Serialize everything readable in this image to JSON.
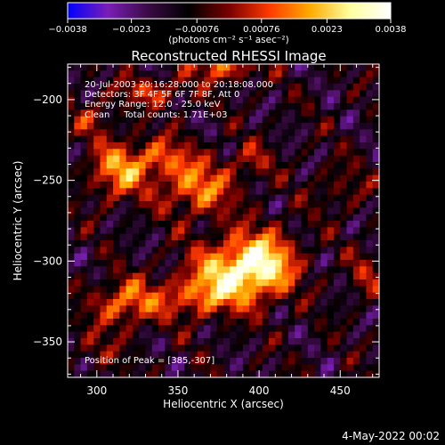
{
  "chart_data": {
    "type": "heatmap",
    "title": "Reconstructed RHESSI Image",
    "xlabel": "Heliocentric X (arcsec)",
    "ylabel": "Heliocentric Y (arcsec)",
    "xlim": [
      282,
      474
    ],
    "ylim": [
      -372,
      -178
    ],
    "x_ticks": [
      {
        "value": 300,
        "label": "300"
      },
      {
        "value": 350,
        "label": "350"
      },
      {
        "value": 400,
        "label": "400"
      },
      {
        "value": 450,
        "label": "450"
      }
    ],
    "y_ticks": [
      {
        "value": -200,
        "label": "−200"
      },
      {
        "value": -250,
        "label": "−250"
      },
      {
        "value": -300,
        "label": "−300"
      },
      {
        "value": -350,
        "label": "−350"
      }
    ],
    "colorbar": {
      "range": [
        -0.0038,
        0.0038
      ],
      "ticks": [
        {
          "value": -0.0038,
          "label": "−0.0038"
        },
        {
          "value": -0.0023,
          "label": "−0.0023"
        },
        {
          "value": -0.00076,
          "label": "−0.00076"
        },
        {
          "value": 0.00076,
          "label": "0.00076"
        },
        {
          "value": 0.0023,
          "label": "0.0023"
        },
        {
          "value": 0.0038,
          "label": "0.0038"
        }
      ],
      "units_label": "(photons cm⁻² s⁻¹ asec⁻²)",
      "colormap": [
        "#0000ff",
        "#7a1eb6",
        "#3a0a44",
        "#000000",
        "#7a0000",
        "#ff3a00",
        "#ffaa00",
        "#ffffa0",
        "#ffffff"
      ]
    },
    "annotations": [
      "20-Jul-2003 20:16:28.000 to 20:18:08.000",
      "Detectors: 3F 4F 5F 6F 7F 8F, Att 0",
      "Energy Range: 12.0 - 25.0 keV",
      "Clean     Total counts: 1.71E+03"
    ],
    "peak_label": "Position of Peak = [385,-307]",
    "peak": {
      "x": 385,
      "y": -307
    },
    "sources": [
      {
        "x": 385,
        "y": -307,
        "sx": 18,
        "sy": 14,
        "amp": 0.0036
      },
      {
        "x": 405,
        "y": -300,
        "sx": 14,
        "sy": 14,
        "amp": 0.0026
      },
      {
        "x": 360,
        "y": -322,
        "sx": 16,
        "sy": 9,
        "amp": 0.002
      },
      {
        "x": 318,
        "y": -326,
        "sx": 14,
        "sy": 10,
        "amp": 0.0026
      },
      {
        "x": 312,
        "y": -245,
        "sx": 12,
        "sy": 12,
        "amp": 0.0026
      },
      {
        "x": 338,
        "y": -236,
        "sx": 14,
        "sy": 9,
        "amp": 0.002
      },
      {
        "x": 362,
        "y": -255,
        "sx": 16,
        "sy": 12,
        "amp": 0.0026
      },
      {
        "x": 335,
        "y": -195,
        "sx": 16,
        "sy": 6,
        "amp": 0.0018
      },
      {
        "x": 378,
        "y": -180,
        "sx": 14,
        "sy": 6,
        "amp": 0.0024
      },
      {
        "x": 298,
        "y": -212,
        "sx": 10,
        "sy": 8,
        "amp": 0.0012
      },
      {
        "x": 395,
        "y": -238,
        "sx": 10,
        "sy": 8,
        "amp": 0.0012
      },
      {
        "x": 450,
        "y": -255,
        "sx": 12,
        "sy": 10,
        "amp": 0.001
      },
      {
        "x": 465,
        "y": -310,
        "sx": 8,
        "sy": 10,
        "amp": 0.0012
      },
      {
        "x": 300,
        "y": -355,
        "sx": 10,
        "sy": 8,
        "amp": 0.001
      }
    ]
  },
  "footer": {
    "timestamp": "4-May-2022 00:02"
  }
}
